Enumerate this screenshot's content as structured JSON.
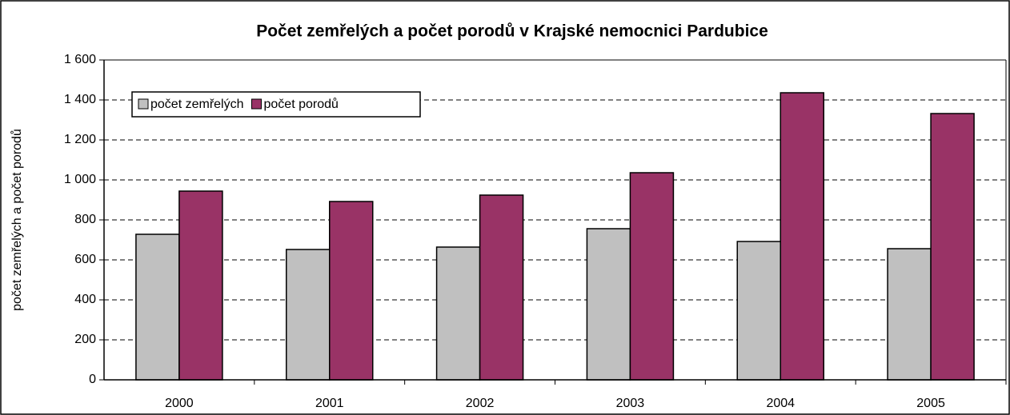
{
  "chart_data": {
    "type": "bar",
    "title": "Počet zemřelých a počet porodů v Krajské nemocnici Pardubice",
    "y_label": "počet zemřelých a počet porodů",
    "categories": [
      "2000",
      "2001",
      "2002",
      "2003",
      "2004",
      "2005"
    ],
    "series": [
      {
        "name": "počet zemřelých",
        "color": "#c0c0c0",
        "values": [
          728,
          652,
          664,
          756,
          692,
          656
        ]
      },
      {
        "name": "počet porodů",
        "color": "#993366",
        "values": [
          944,
          892,
          924,
          1036,
          1436,
          1332
        ]
      }
    ],
    "ylim": [
      0,
      1600
    ],
    "yticks": [
      0,
      200,
      400,
      600,
      800,
      {
        "value": 1000,
        "label": "1 000"
      },
      {
        "value": 1200,
        "label": "1 200"
      },
      {
        "value": 1400,
        "label": "1 400"
      },
      {
        "value": 1600,
        "label": "1 600"
      }
    ],
    "grid": true,
    "legend": "upper left"
  }
}
